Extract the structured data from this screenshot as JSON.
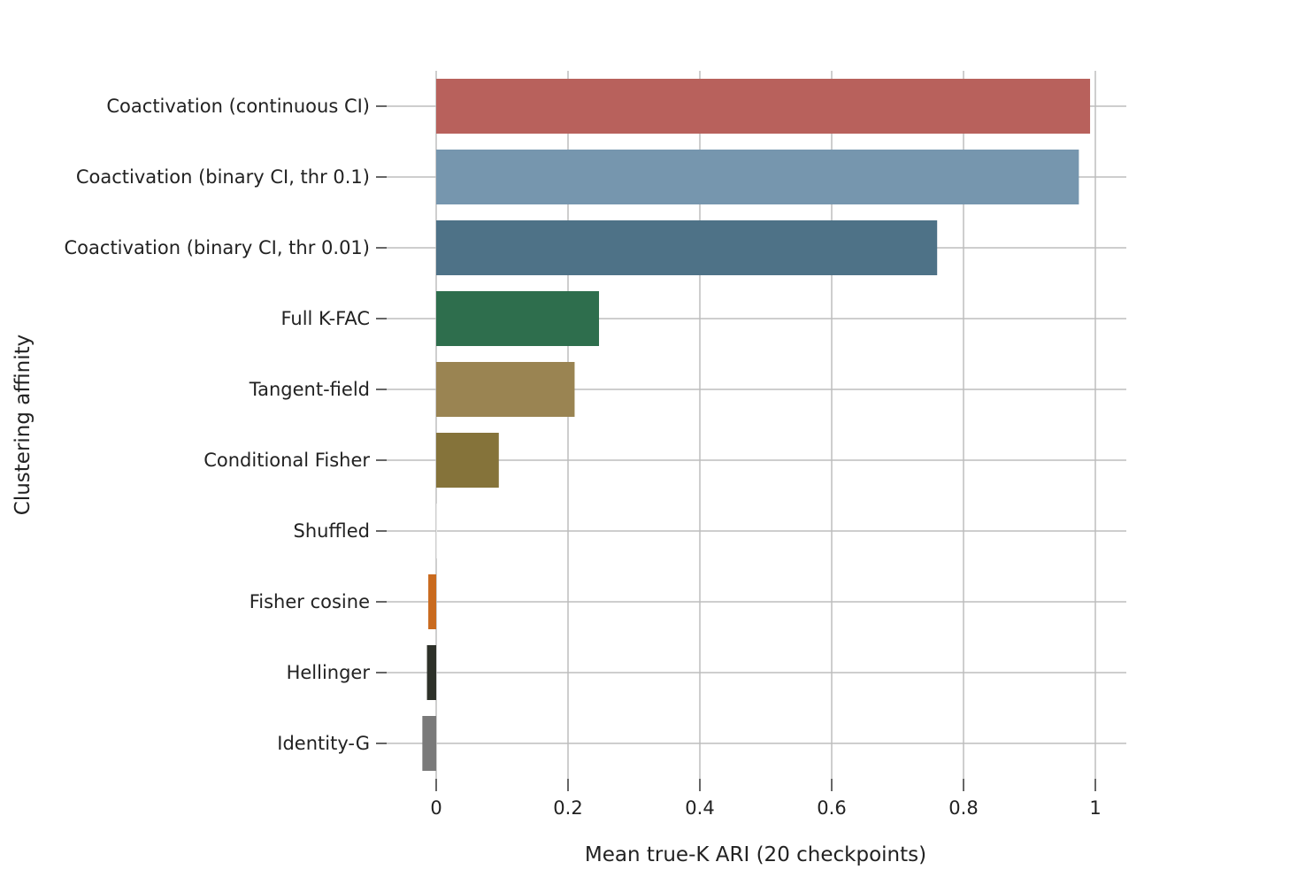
{
  "chart_data": {
    "type": "bar",
    "orientation": "horizontal",
    "xlabel": "Mean true-K ARI (20 checkpoints)",
    "ylabel": "Clustering affinity",
    "xlim": [
      -0.05,
      1.05
    ],
    "xticks": [
      0,
      0.2,
      0.4,
      0.6,
      0.8,
      1
    ],
    "xtick_labels": [
      "0",
      "0.2",
      "0.4",
      "0.6",
      "0.8",
      "1"
    ],
    "grid": true,
    "categories": [
      "Coactivation (continuous CI)",
      "Coactivation (binary CI, thr 0.1)",
      "Coactivation (binary CI, thr 0.01)",
      "Full K-FAC",
      "Tangent-field",
      "Conditional Fisher",
      "Shuffled",
      "Fisher cosine",
      "Hellinger",
      "Identity-G"
    ],
    "values": [
      0.992,
      0.975,
      0.76,
      0.247,
      0.21,
      0.095,
      0.001,
      -0.012,
      -0.014,
      -0.021
    ],
    "colors": [
      "#b8615c",
      "#7696ae",
      "#4e7287",
      "#2e6e4d",
      "#9a8452",
      "#85733a",
      "#e8e8e8",
      "#c96a1e",
      "#2d3129",
      "#7a7a7a"
    ]
  }
}
